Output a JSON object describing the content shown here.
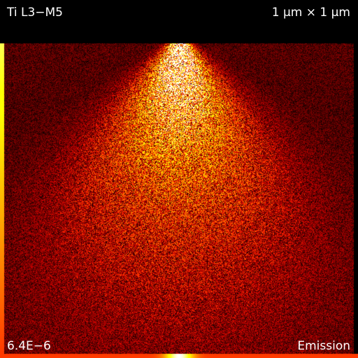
{
  "overlay": {
    "top_left": "Ti L3−M5",
    "top_right": "1 μm × 1 μm",
    "bottom_left": "6.4E−6",
    "bottom_right": "Emission"
  },
  "image": {
    "colormap": "black-red-orange-yellow-white (hot)",
    "colors": {
      "background": "#000000",
      "low": "#5a0f02",
      "mid": "#c23a05",
      "high": "#ffb347",
      "peak": "#fff3c8"
    }
  }
}
